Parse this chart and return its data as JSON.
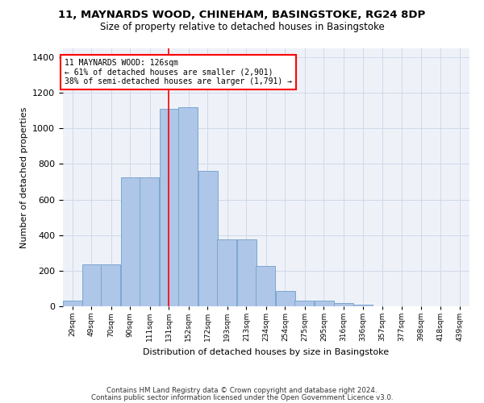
{
  "title": "11, MAYNARDS WOOD, CHINEHAM, BASINGSTOKE, RG24 8DP",
  "subtitle": "Size of property relative to detached houses in Basingstoke",
  "xlabel": "Distribution of detached houses by size in Basingstoke",
  "ylabel": "Number of detached properties",
  "categories": [
    "29sqm",
    "49sqm",
    "70sqm",
    "90sqm",
    "111sqm",
    "131sqm",
    "152sqm",
    "172sqm",
    "193sqm",
    "213sqm",
    "234sqm",
    "254sqm",
    "275sqm",
    "295sqm",
    "316sqm",
    "336sqm",
    "357sqm",
    "377sqm",
    "398sqm",
    "418sqm",
    "439sqm"
  ],
  "bar_heights": [
    30,
    235,
    235,
    725,
    725,
    1110,
    1120,
    760,
    375,
    375,
    225,
    85,
    30,
    30,
    20,
    10,
    0,
    0,
    0,
    0,
    0
  ],
  "bar_left_edges": [
    19,
    39,
    59,
    80,
    100,
    121,
    141,
    162,
    182,
    203,
    223,
    244,
    264,
    285,
    305,
    326,
    346,
    367,
    387,
    408,
    428
  ],
  "bin_width": 21,
  "bar_color": "#aec6e8",
  "bar_edge_color": "#7ba7cf",
  "vline_x": 131,
  "vline_color": "red",
  "annotation_text": "11 MAYNARDS WOOD: 126sqm\n← 61% of detached houses are smaller (2,901)\n38% of semi-detached houses are larger (1,791) →",
  "annotation_box_color": "white",
  "annotation_box_edge": "red",
  "ylim": [
    0,
    1450
  ],
  "xlim_min": 19,
  "xlim_max": 449,
  "tick_positions": [
    29,
    49,
    70,
    90,
    111,
    131,
    152,
    172,
    193,
    213,
    234,
    254,
    275,
    295,
    316,
    336,
    357,
    377,
    398,
    418,
    439
  ],
  "yticks": [
    0,
    200,
    400,
    600,
    800,
    1000,
    1200,
    1400
  ],
  "footer1": "Contains HM Land Registry data © Crown copyright and database right 2024.",
  "footer2": "Contains public sector information licensed under the Open Government Licence v3.0.",
  "grid_color": "#d0d8e8",
  "bg_color": "#eef2f8"
}
